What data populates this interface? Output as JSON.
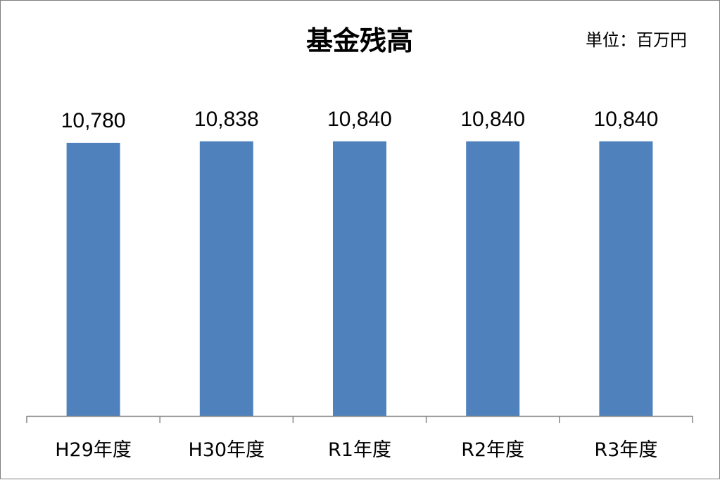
{
  "chart_data": {
    "type": "bar",
    "title": "基金残高",
    "unit_label": "単位：百万円",
    "categories": [
      "H29年度",
      "H30年度",
      "R1年度",
      "R2年度",
      "R3年度"
    ],
    "values": [
      10780,
      10838,
      10840,
      10840,
      10840
    ],
    "data_labels": [
      "10,780",
      "10,838",
      "10,840",
      "10,840",
      "10,840"
    ],
    "ylim": [
      0,
      12000
    ],
    "grid": false,
    "legend": "none",
    "bar_color": "#4f81bd",
    "axis_color": "#868686"
  }
}
